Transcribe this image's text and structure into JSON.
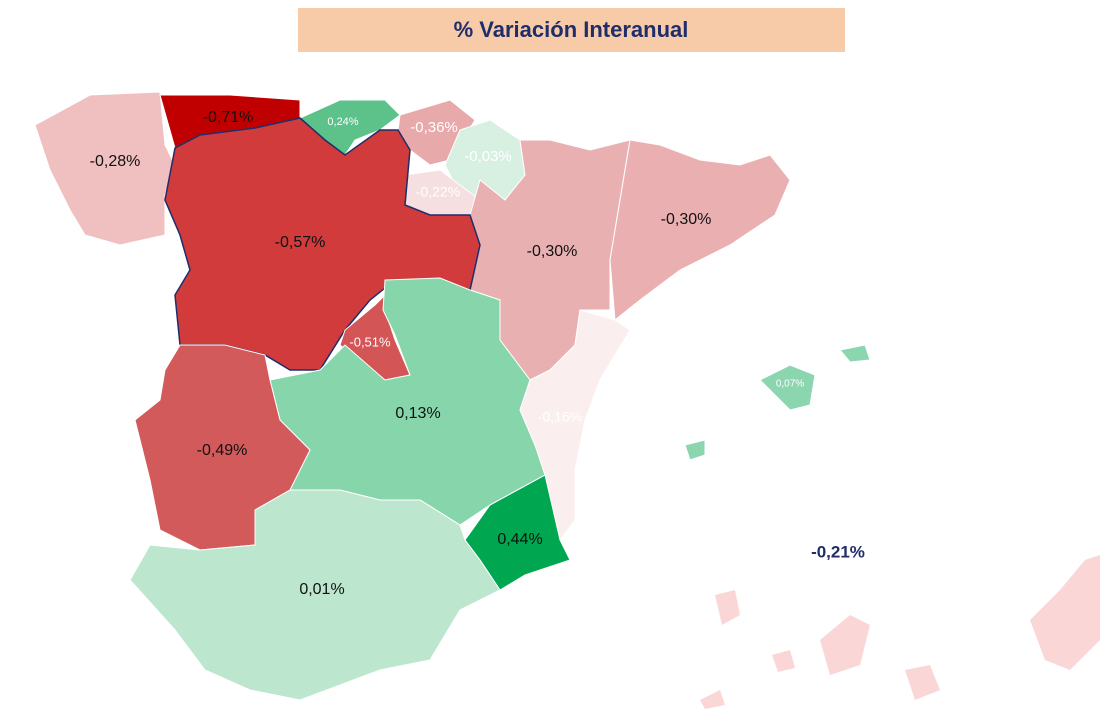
{
  "title": "% Variación Interanual",
  "map": {
    "values": [
      -0.28,
      -0.71,
      0.24,
      -0.36,
      -0.03,
      -0.22,
      -0.3,
      -0.3,
      -0.57,
      -0.51,
      0.13,
      -0.49,
      -0.16,
      0.44,
      0.01,
      0.07
    ],
    "value_labels": [
      "-0,28%",
      "-0,71%",
      "0,24%",
      "-0,36%",
      "-0,03%",
      "-0,22%",
      "-0,30%",
      "-0,30%",
      "-0,57%",
      "-0,51%",
      "0,13%",
      "-0,49%",
      "-0,16%",
      "0,44%",
      "0,01%",
      "0,07%"
    ],
    "colors": [
      "#f0bfc0",
      "#c00000",
      "#5dc28a",
      "#e8a9ab",
      "#d7f0e2",
      "#f5dfe0",
      "#e8b0b1",
      "#eab0b1",
      "#d13b3c",
      "#d45555",
      "#86d5ab",
      "#d35a5b",
      "#fbeeee",
      "#00a650",
      "#bde6cf",
      "#8bd6ae"
    ],
    "label_colors": [
      "#111",
      "#111",
      "#fff",
      "#fff",
      "#fff",
      "#fff",
      "#111",
      "#111",
      "#111",
      "#fff",
      "#111",
      "#111",
      "#fff",
      "#111",
      "#111",
      "#fff"
    ]
  },
  "national": {
    "value": -0.21,
    "label": "-0,21%"
  }
}
